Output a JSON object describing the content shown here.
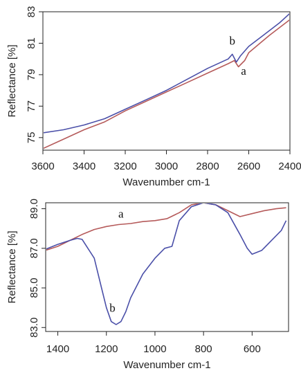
{
  "colors": {
    "series_a": "#b55a5a",
    "series_b": "#4a4fa8",
    "axis": "#222222"
  },
  "chart_data": [
    {
      "type": "line",
      "title": "",
      "xlabel": "Wavenumber cm-1",
      "ylabel": "Reflectance [%]",
      "xlim": [
        3600,
        2400
      ],
      "ylim": [
        74.2,
        83
      ],
      "x_reversed": true,
      "xticks": [
        3600,
        3400,
        3200,
        3000,
        2800,
        2600,
        2400
      ],
      "yticks": [
        75,
        77,
        79,
        81,
        83
      ],
      "grid": false,
      "legend": "none",
      "series": [
        {
          "name": "a",
          "color": "#b55a5a",
          "x": [
            3600,
            3500,
            3400,
            3300,
            3200,
            3100,
            3000,
            2900,
            2800,
            2700,
            2670,
            2650,
            2620,
            2600,
            2500,
            2450,
            2400
          ],
          "y": [
            74.3,
            74.9,
            75.5,
            76.0,
            76.7,
            77.3,
            77.9,
            78.5,
            79.1,
            79.7,
            79.9,
            79.5,
            79.9,
            80.4,
            81.5,
            82.0,
            82.5
          ]
        },
        {
          "name": "b",
          "color": "#4a4fa8",
          "x": [
            3600,
            3500,
            3400,
            3300,
            3200,
            3100,
            3000,
            2900,
            2800,
            2700,
            2680,
            2660,
            2640,
            2600,
            2500,
            2450,
            2400
          ],
          "y": [
            75.3,
            75.5,
            75.8,
            76.2,
            76.8,
            77.4,
            78.0,
            78.7,
            79.4,
            80.0,
            80.3,
            79.8,
            80.2,
            80.8,
            81.8,
            82.3,
            82.9
          ]
        }
      ],
      "annotations": [
        {
          "text": "b",
          "x": 2680,
          "y": 80.9
        },
        {
          "text": "a",
          "x": 2625,
          "y": 79.0
        }
      ]
    },
    {
      "type": "line",
      "title": "",
      "xlabel": "Wavenumber cm-1",
      "ylabel": "Reflectance [%]",
      "xlim": [
        1450,
        450
      ],
      "ylim": [
        82.8,
        89.3
      ],
      "x_reversed": true,
      "xticks": [
        1400,
        1200,
        1000,
        800,
        600
      ],
      "yticks": [
        83.0,
        85.0,
        87.0,
        89.0
      ],
      "grid": false,
      "legend": "none",
      "series": [
        {
          "name": "a",
          "color": "#b55a5a",
          "x": [
            1450,
            1400,
            1350,
            1300,
            1250,
            1200,
            1150,
            1100,
            1050,
            1000,
            950,
            900,
            850,
            800,
            750,
            700,
            650,
            600,
            550,
            500,
            460
          ],
          "y": [
            86.9,
            87.1,
            87.4,
            87.7,
            87.95,
            88.1,
            88.2,
            88.25,
            88.35,
            88.4,
            88.5,
            88.8,
            89.2,
            89.3,
            89.2,
            88.9,
            88.6,
            88.75,
            88.9,
            89.0,
            89.05
          ]
        },
        {
          "name": "b",
          "color": "#4a4fa8",
          "x": [
            1450,
            1400,
            1350,
            1320,
            1300,
            1250,
            1220,
            1200,
            1180,
            1160,
            1140,
            1120,
            1100,
            1050,
            1000,
            960,
            930,
            900,
            850,
            800,
            750,
            700,
            650,
            620,
            600,
            560,
            520,
            480,
            460
          ],
          "y": [
            86.95,
            87.2,
            87.4,
            87.5,
            87.45,
            86.5,
            85.0,
            84.0,
            83.3,
            83.15,
            83.3,
            83.8,
            84.5,
            85.7,
            86.5,
            87.0,
            87.1,
            88.4,
            89.1,
            89.3,
            89.2,
            88.8,
            87.7,
            87.0,
            86.7,
            86.9,
            87.4,
            87.9,
            88.4
          ]
        }
      ],
      "annotations": [
        {
          "text": "a",
          "x": 1140,
          "y": 88.55
        },
        {
          "text": "b",
          "x": 1175,
          "y": 83.8
        }
      ]
    }
  ]
}
